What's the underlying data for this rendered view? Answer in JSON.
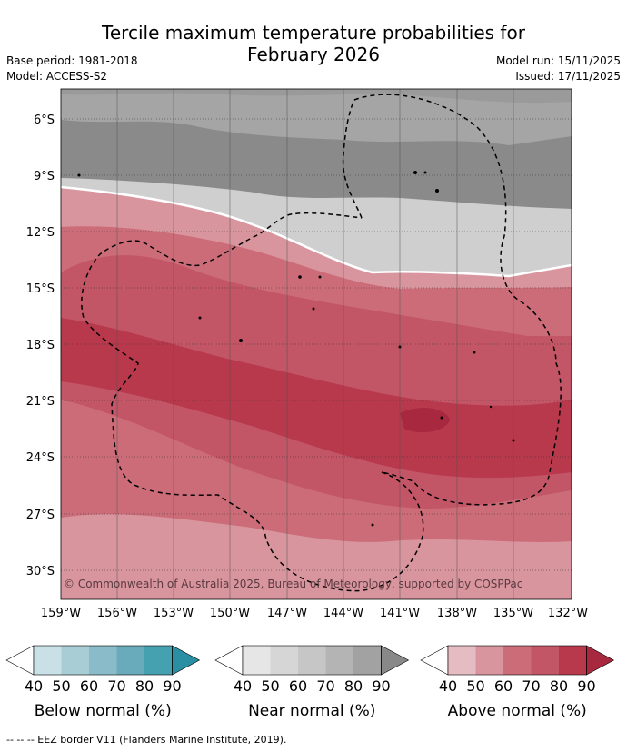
{
  "title_line1": "Tercile maximum temperature probabilities for",
  "title_line2": "February 2026",
  "meta": {
    "base_period": "Base period: 1981-2018",
    "model": "Model: ACCESS-S2",
    "model_run": "Model run: 15/11/2025",
    "issued": "Issued: 17/11/2025"
  },
  "axes": {
    "lat_labels": [
      "6°S",
      "9°S",
      "12°S",
      "15°S",
      "18°S",
      "21°S",
      "24°S",
      "27°S",
      "30°S"
    ],
    "lon_labels": [
      "159°W",
      "156°W",
      "153°W",
      "150°W",
      "147°W",
      "144°W",
      "141°W",
      "138°W",
      "135°W",
      "132°W"
    ]
  },
  "copyright": "© Commonwealth of Australia 2025, Bureau of Meteorology, supported by COSPPac",
  "colorbars": [
    {
      "label": "Below normal (%)",
      "ticks": [
        "40",
        "50",
        "60",
        "70",
        "80",
        "90"
      ],
      "colors": [
        "#ffffff",
        "#c8e0e6",
        "#a9cdd5",
        "#89bcc8",
        "#6aabbb",
        "#45a0b0",
        "#2b8fa3"
      ]
    },
    {
      "label": "Near normal (%)",
      "ticks": [
        "40",
        "50",
        "60",
        "70",
        "80",
        "90"
      ],
      "colors": [
        "#ffffff",
        "#e6e6e6",
        "#d6d6d6",
        "#c6c6c6",
        "#b4b4b4",
        "#a2a2a2",
        "#888888"
      ]
    },
    {
      "label": "Above normal (%)",
      "ticks": [
        "40",
        "50",
        "60",
        "70",
        "80",
        "90"
      ],
      "colors": [
        "#ffffff",
        "#e6bcc3",
        "#d8959e",
        "#cc6c79",
        "#c25566",
        "#b8384c",
        "#a82840"
      ]
    }
  ],
  "footnote": "-- -- -- EEZ border V11 (Flanders Marine Institute, 2019)."
}
